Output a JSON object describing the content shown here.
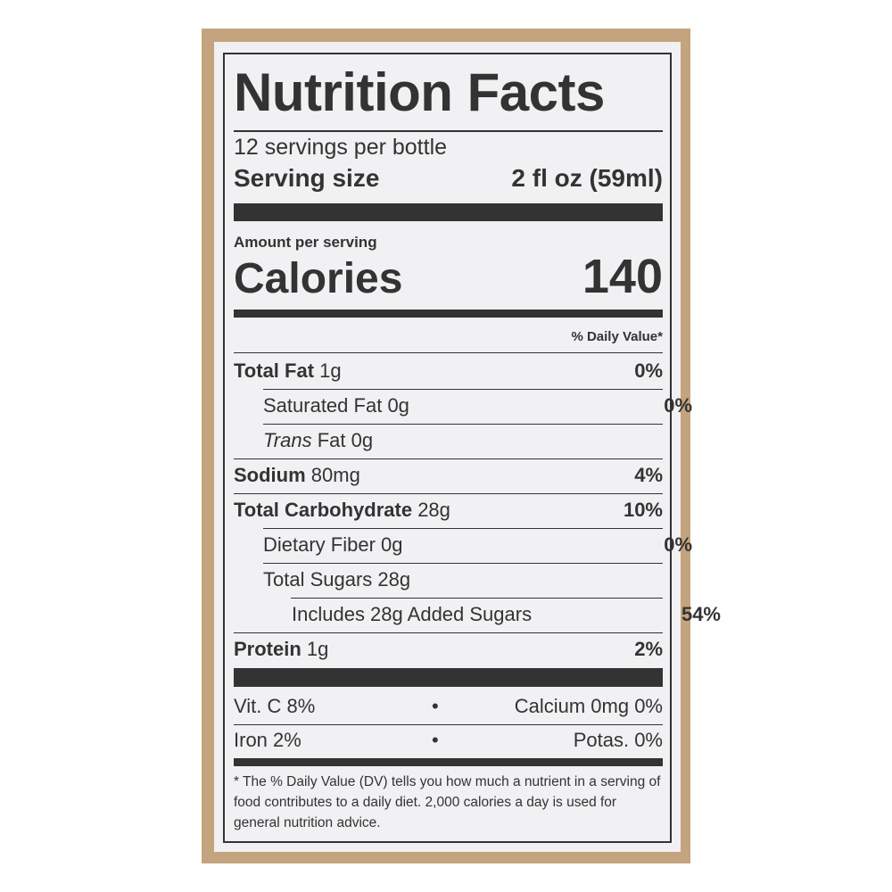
{
  "label": {
    "title": "Nutrition Facts",
    "servings_per_container": "12 servings per bottle",
    "serving_size_label": "Serving size",
    "serving_size_value": "2 fl oz (59ml)",
    "amount_per_serving": "Amount per serving",
    "calories_label": "Calories",
    "calories_value": "140",
    "daily_value_header": "% Daily Value*",
    "nutrients": [
      {
        "name": "Total Fat",
        "amount": "1g",
        "dv": "0%"
      },
      {
        "name": "Saturated Fat",
        "amount": "0g",
        "dv": "0%"
      },
      {
        "name": "Trans",
        "name_suffix": "Fat",
        "amount": "0g",
        "dv": ""
      },
      {
        "name": "Sodium",
        "amount": "80mg",
        "dv": "4%"
      },
      {
        "name": "Total Carbohydrate",
        "amount": "28g",
        "dv": "10%"
      },
      {
        "name": "Dietary Fiber",
        "amount": "0g",
        "dv": "0%"
      },
      {
        "name": "Total Sugars",
        "amount": "28g",
        "dv": ""
      },
      {
        "name": "Includes 28g Added Sugars",
        "amount": "",
        "dv": "54%"
      },
      {
        "name": "Protein",
        "amount": "1g",
        "dv": "2%"
      }
    ],
    "vitamins": [
      {
        "left": "Vit. C 8%",
        "bullet": "•",
        "right": "Calcium 0mg 0%"
      },
      {
        "left": "Iron 2%",
        "bullet": "•",
        "right": "Potas. 0%"
      }
    ],
    "footnote": "* The % Daily Value (DV) tells you how much a nutrient in a serving of food contributes to a daily diet. 2,000 calories a day is used for general nutrition advice."
  },
  "colors": {
    "border": "#c3a47e",
    "paper": "#f1f1f3",
    "ink": "#333333"
  }
}
